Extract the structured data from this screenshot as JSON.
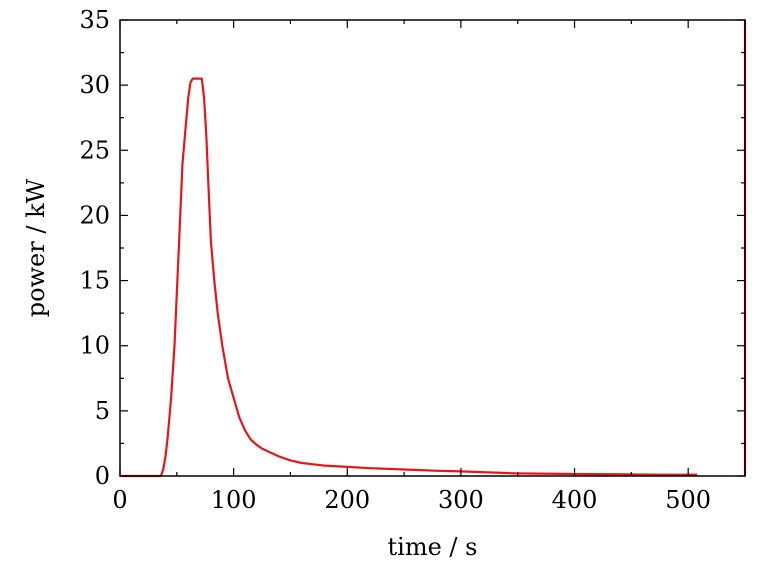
{
  "chart_data": {
    "type": "line",
    "title": "",
    "xlabel": "time / s",
    "ylabel": "power / kW",
    "xlim": [
      0,
      550
    ],
    "ylim": [
      0,
      35
    ],
    "xticks": [
      0,
      100,
      200,
      300,
      400,
      500
    ],
    "yticks": [
      0,
      5,
      10,
      15,
      20,
      25,
      30,
      35
    ],
    "grid": false,
    "legend": "none",
    "series": [
      {
        "color": "#e8141c",
        "x": [
          0,
          36,
          38,
          40,
          42,
          45,
          48,
          52,
          55,
          58,
          60,
          62,
          64,
          66,
          68,
          72,
          74,
          76,
          78,
          80,
          83,
          86,
          90,
          95,
          100,
          105,
          110,
          115,
          120,
          125,
          130,
          140,
          150,
          160,
          170,
          180,
          200,
          220,
          235,
          250,
          280,
          300,
          348,
          400,
          450,
          480,
          500,
          508
        ],
        "y": [
          0,
          0,
          0.5,
          1.5,
          3,
          6,
          10,
          18,
          24,
          27,
          29,
          30.2,
          30.5,
          30.5,
          30.5,
          30.5,
          29,
          26,
          22,
          18,
          15,
          12.5,
          10,
          7.5,
          6,
          4.5,
          3.5,
          2.8,
          2.4,
          2.1,
          1.9,
          1.5,
          1.2,
          1.0,
          0.9,
          0.8,
          0.7,
          0.6,
          0.55,
          0.5,
          0.4,
          0.35,
          0.2,
          0.15,
          0.12,
          0.1,
          0.1,
          0.1
        ]
      }
    ]
  }
}
